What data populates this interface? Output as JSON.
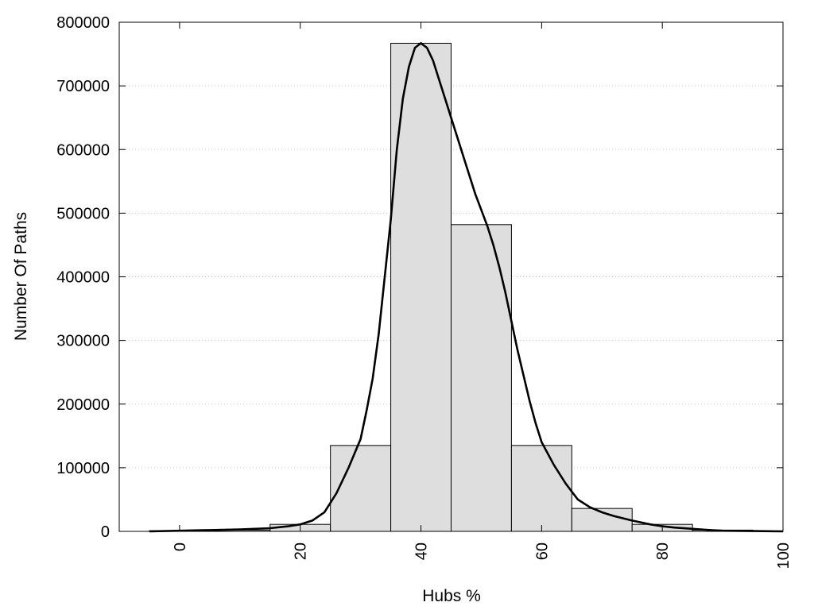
{
  "chart_data": {
    "type": "bar",
    "xlabel": "Hubs %",
    "ylabel": "Number Of Paths",
    "xlim": [
      -10,
      100
    ],
    "ylim": [
      0,
      800000
    ],
    "x_ticks": [
      "0",
      "20",
      "40",
      "60",
      "80",
      "100"
    ],
    "y_ticks": [
      "0",
      "100000",
      "200000",
      "300000",
      "400000",
      "500000",
      "600000",
      "700000",
      "800000"
    ],
    "grid": "horizontal-dotted",
    "colors": {
      "bar_fill": "#dedede",
      "bar_stroke": "#000000",
      "curve": "#000000",
      "grid": "#c8c8c8"
    },
    "bins": [
      {
        "x_start": -5,
        "x_end": 5,
        "value": 1000
      },
      {
        "x_start": 5,
        "x_end": 15,
        "value": 2000
      },
      {
        "x_start": 15,
        "x_end": 25,
        "value": 11000
      },
      {
        "x_start": 25,
        "x_end": 35,
        "value": 135000
      },
      {
        "x_start": 35,
        "x_end": 45,
        "value": 767000
      },
      {
        "x_start": 45,
        "x_end": 55,
        "value": 482000
      },
      {
        "x_start": 55,
        "x_end": 65,
        "value": 135000
      },
      {
        "x_start": 65,
        "x_end": 75,
        "value": 36000
      },
      {
        "x_start": 75,
        "x_end": 85,
        "value": 11000
      },
      {
        "x_start": 85,
        "x_end": 95,
        "value": 2000
      }
    ],
    "curve": {
      "x": [
        -5,
        0,
        5,
        10,
        15,
        18,
        20,
        22,
        24,
        26,
        28,
        30,
        31,
        32,
        33,
        34,
        35,
        36,
        37,
        38,
        39,
        40,
        41,
        42,
        43,
        44,
        45,
        46,
        47,
        48,
        49,
        50,
        51,
        52,
        53,
        54,
        55,
        56,
        57,
        58,
        59,
        60,
        62,
        64,
        66,
        68,
        70,
        72,
        75,
        78,
        80,
        82,
        85,
        88,
        90,
        95,
        100
      ],
      "y": [
        0,
        1000,
        2000,
        3000,
        5000,
        8000,
        11000,
        17000,
        30000,
        60000,
        100000,
        145000,
        190000,
        240000,
        310000,
        400000,
        490000,
        600000,
        680000,
        730000,
        760000,
        767000,
        760000,
        740000,
        710000,
        680000,
        650000,
        620000,
        590000,
        560000,
        530000,
        505000,
        480000,
        450000,
        415000,
        375000,
        330000,
        285000,
        245000,
        205000,
        170000,
        140000,
        105000,
        75000,
        50000,
        38000,
        30000,
        24000,
        17000,
        11000,
        8000,
        6000,
        4000,
        2000,
        1000,
        500,
        0
      ]
    }
  }
}
